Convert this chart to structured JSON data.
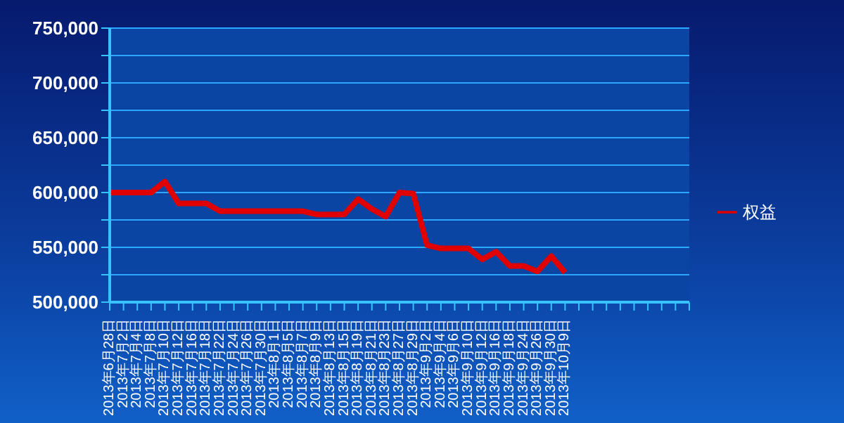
{
  "chart_data": {
    "type": "line",
    "categories": [
      "2013年6月28日",
      "2013年7月2日",
      "2013年7月4日",
      "2013年7月8日",
      "2013年7月10日",
      "2013年7月12日",
      "2013年7月16日",
      "2013年7月18日",
      "2013年7月22日",
      "2013年7月24日",
      "2013年7月26日",
      "2013年7月30日",
      "2013年8月1日",
      "2013年8月5日",
      "2013年8月7日",
      "2013年8月9日",
      "2013年8月13日",
      "2013年8月15日",
      "2013年8月19日",
      "2013年8月21日",
      "2013年8月23日",
      "2013年8月27日",
      "2013年8月29日",
      "2013年9月2日",
      "2013年9月4日",
      "2013年9月6日",
      "2013年9月10日",
      "2013年9月12日",
      "2013年9月16日",
      "2013年9月18日",
      "2013年9月24日",
      "2013年9月26日",
      "2013年9月30日",
      "2013年10月9日",
      null,
      null,
      null,
      null,
      null,
      null,
      null,
      null,
      null
    ],
    "series": [
      {
        "name": "权益",
        "color": "#e00000",
        "values": [
          600000,
          600000,
          600000,
          600000,
          610000,
          590000,
          590000,
          590000,
          583000,
          583000,
          583000,
          583000,
          583000,
          583000,
          583000,
          580000,
          580000,
          580000,
          594000,
          585000,
          578000,
          600000,
          599000,
          552000,
          549000,
          549000,
          549000,
          539000,
          546000,
          533000,
          533000,
          528000,
          542000,
          527000,
          null,
          null,
          null,
          null,
          null,
          null,
          null,
          null,
          null
        ]
      }
    ],
    "ylim": [
      500000,
      750000
    ],
    "yticks": [
      {
        "value": 500000,
        "label": "500,000"
      },
      {
        "value": 525000,
        "label": null
      },
      {
        "value": 550000,
        "label": "550,000"
      },
      {
        "value": 575000,
        "label": null
      },
      {
        "value": 600000,
        "label": "600,000"
      },
      {
        "value": 625000,
        "label": null
      },
      {
        "value": 650000,
        "label": "650,000"
      },
      {
        "value": 675000,
        "label": null
      },
      {
        "value": 700000,
        "label": "700,000"
      },
      {
        "value": 725000,
        "label": null
      },
      {
        "value": 750000,
        "label": "750,000"
      }
    ],
    "grid": "y",
    "legend": "right",
    "marker": "none",
    "line_style": "solid"
  }
}
